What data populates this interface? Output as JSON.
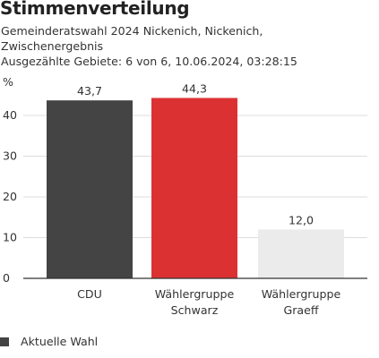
{
  "title": "Stimmenverteilung",
  "subtitle": "Gemeinderatswahl 2024 Nickenich, Nickenich, Zwischenergebnis",
  "status": "Ausgezählte Gebiete: 6 von 6, 10.06.2024, 03:28:15",
  "legend": {
    "label": "Aktuelle Wahl",
    "color": "#444444"
  },
  "chart_data": {
    "type": "bar",
    "ylabel": "%",
    "ylim": [
      0,
      50
    ],
    "yticks": [
      0,
      10,
      20,
      30,
      40
    ],
    "grid": true,
    "categories": [
      {
        "lines": [
          "CDU"
        ],
        "value": 43.7,
        "label": "43,7",
        "color": "#444444"
      },
      {
        "lines": [
          "Wählergruppe",
          "Schwarz"
        ],
        "value": 44.3,
        "label": "44,3",
        "color": "#dc3133"
      },
      {
        "lines": [
          "Wählergruppe",
          "Graeff"
        ],
        "value": 12.0,
        "label": "12,0",
        "color": "#ebebeb"
      }
    ]
  }
}
